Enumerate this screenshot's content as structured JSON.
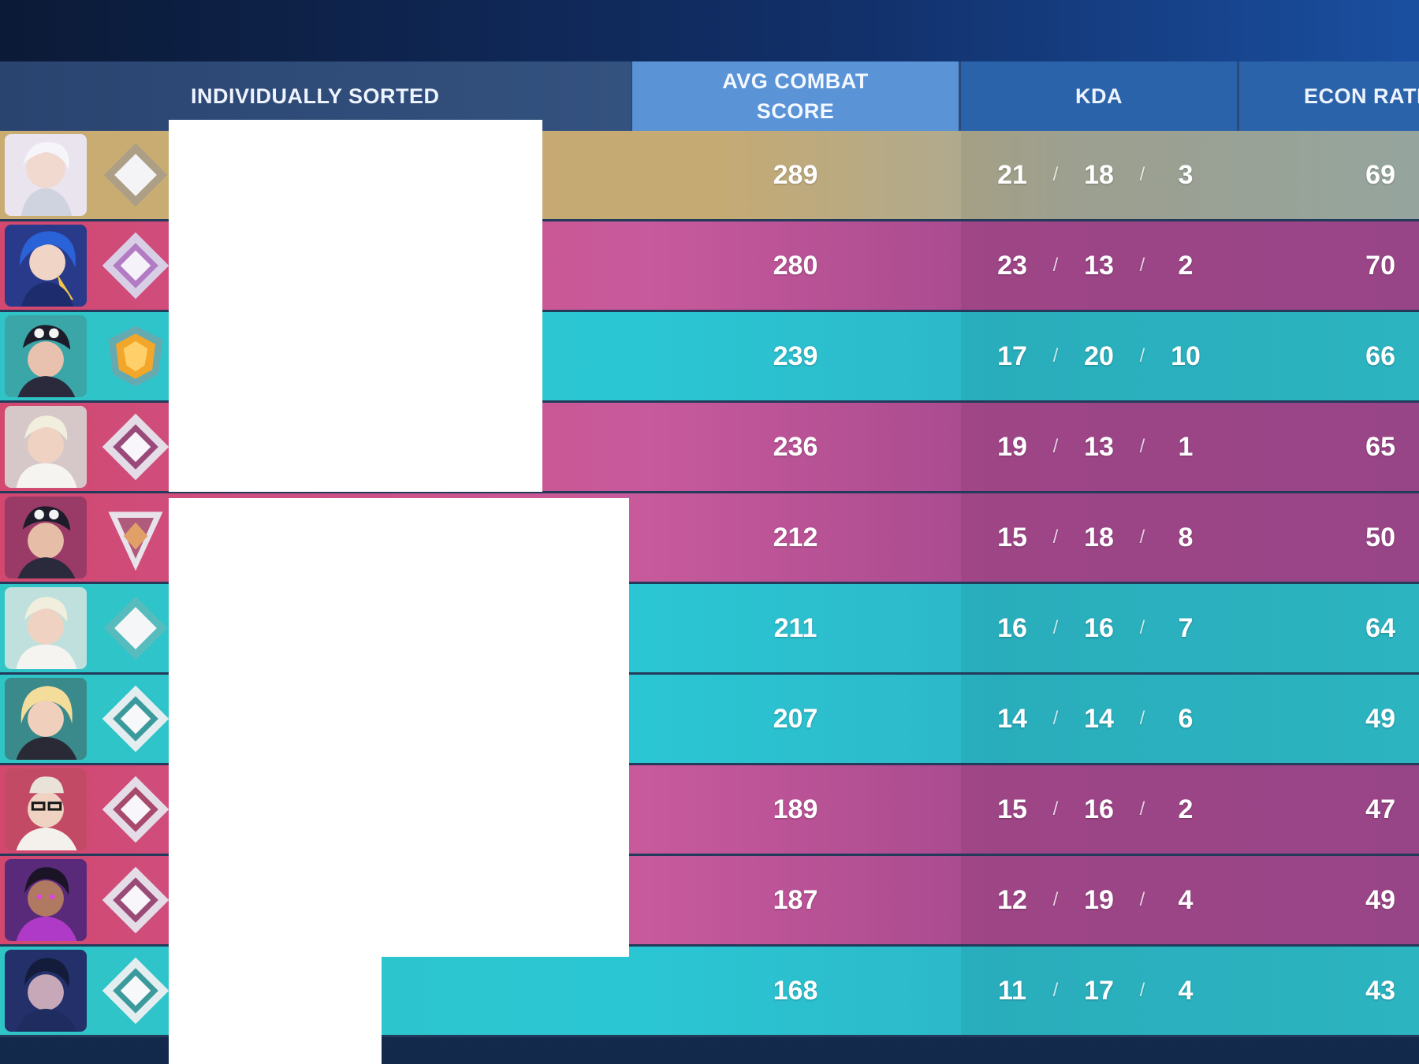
{
  "header": {
    "name_label": "INDIVIDUALLY SORTED",
    "acs_label": "AVG COMBAT\nSCORE",
    "kda_label": "KDA",
    "econ_label": "ECON RATI"
  },
  "rows": [
    {
      "acs": "289",
      "k": "21",
      "d": "18",
      "a": "3",
      "econ": "69"
    },
    {
      "acs": "280",
      "k": "23",
      "d": "13",
      "a": "2",
      "econ": "70"
    },
    {
      "acs": "239",
      "k": "17",
      "d": "20",
      "a": "10",
      "econ": "66"
    },
    {
      "acs": "236",
      "k": "19",
      "d": "13",
      "a": "1",
      "econ": "65"
    },
    {
      "acs": "212",
      "k": "15",
      "d": "18",
      "a": "8",
      "econ": "50"
    },
    {
      "acs": "211",
      "k": "16",
      "d": "16",
      "a": "7",
      "econ": "64"
    },
    {
      "acs": "207",
      "k": "14",
      "d": "14",
      "a": "6",
      "econ": "49"
    },
    {
      "acs": "189",
      "k": "15",
      "d": "16",
      "a": "2",
      "econ": "47"
    },
    {
      "acs": "187",
      "k": "12",
      "d": "19",
      "a": "4",
      "econ": "49"
    },
    {
      "acs": "168",
      "k": "11",
      "d": "17",
      "a": "4",
      "econ": "43"
    }
  ],
  "kda_separator": "/",
  "row_colors": {
    "gold": "#c9ac72",
    "pink": "#c85a9c",
    "teal": "#2bc6d4"
  },
  "icons": [
    "agent-portrait-icon",
    "rank-diamond-icon",
    "rank-gold-icon"
  ]
}
